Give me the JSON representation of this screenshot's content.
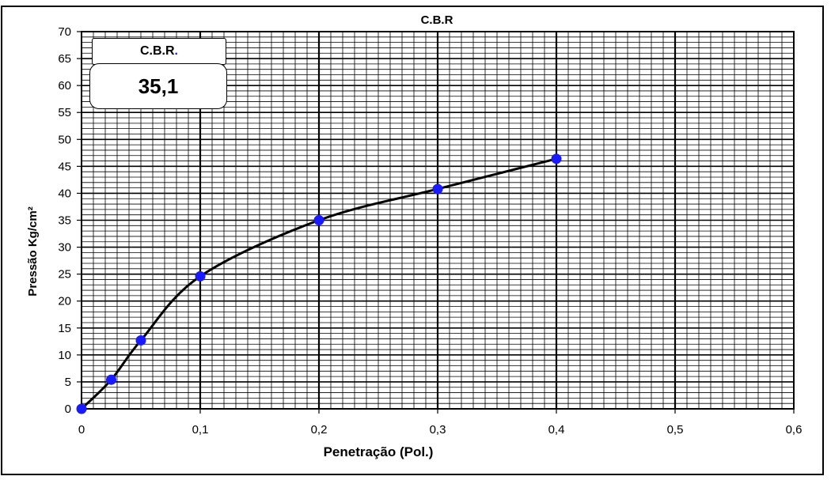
{
  "chart_data": {
    "type": "line",
    "title": "C.B.R",
    "xlabel": "Penetração (Pol.)",
    "ylabel": "Pressão Kg/cm²",
    "xlim": [
      0,
      0.6
    ],
    "ylim": [
      0,
      70
    ],
    "x_ticks": [
      "0",
      "0,1",
      "0,2",
      "0,3",
      "0,4",
      "0,5",
      "0,6"
    ],
    "y_ticks": [
      "0",
      "5",
      "10",
      "15",
      "20",
      "25",
      "30",
      "35",
      "40",
      "45",
      "50",
      "55",
      "60",
      "65",
      "70"
    ],
    "grid": true,
    "series": [
      {
        "color": "#1a1aff",
        "line_color": "#000000",
        "x": [
          0,
          0.025,
          0.05,
          0.1,
          0.2,
          0.3,
          0.4
        ],
        "y": [
          0,
          5.4,
          12.7,
          24.6,
          35.0,
          40.8,
          46.4
        ]
      }
    ]
  },
  "cbr_box": {
    "label": "C.B.R",
    "label_dot": ".",
    "value": "35,1"
  }
}
